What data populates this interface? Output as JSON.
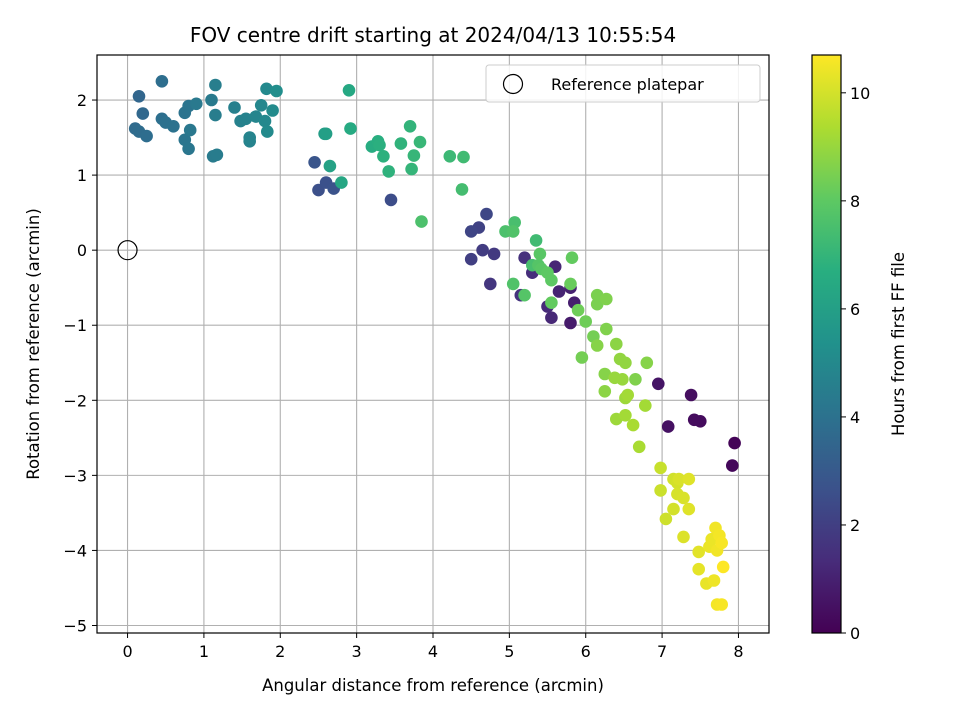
{
  "chart_data": {
    "type": "scatter",
    "title": "FOV centre drift starting at 2024/04/13 10:55:54",
    "xlabel": "Angular distance from reference (arcmin)",
    "ylabel": "Rotation from reference (arcmin)",
    "xlim": [
      -0.4,
      8.4
    ],
    "ylim": [
      -5.1,
      2.6
    ],
    "xticks": [
      0,
      1,
      2,
      3,
      4,
      5,
      6,
      7,
      8
    ],
    "yticks": [
      2,
      1,
      0,
      -1,
      -2,
      -3,
      -4,
      -5
    ],
    "ytick_labels": [
      "2",
      "1",
      "0",
      "−1",
      "−2",
      "−3",
      "−4",
      "−5"
    ],
    "grid": true,
    "legend": {
      "position": "top-right",
      "entries": [
        {
          "label": "Reference platepar",
          "marker": "open-circle",
          "x": 0,
          "y": 0
        }
      ]
    },
    "colorbar": {
      "label": "Hours from first FF file",
      "colormap": "viridis",
      "range": [
        0,
        10.7
      ],
      "ticks": [
        0,
        2,
        4,
        6,
        8,
        10
      ]
    },
    "colormap_stops": [
      "#440154",
      "#472c7a",
      "#3b528b",
      "#2c728e",
      "#21918c",
      "#28ae80",
      "#5ec962",
      "#addc30",
      "#fde725"
    ],
    "points": [
      [
        7.95,
        -2.57,
        0.1
      ],
      [
        7.92,
        -2.87,
        0.2
      ],
      [
        7.5,
        -2.28,
        0.3
      ],
      [
        7.42,
        -2.26,
        0.35
      ],
      [
        7.38,
        -1.93,
        0.4
      ],
      [
        7.08,
        -2.35,
        0.5
      ],
      [
        6.95,
        -1.78,
        0.6
      ],
      [
        5.8,
        -0.97,
        0.8
      ],
      [
        5.85,
        -0.7,
        0.9
      ],
      [
        5.8,
        -0.5,
        1.0
      ],
      [
        5.65,
        -0.55,
        1.1
      ],
      [
        5.6,
        -0.22,
        1.15
      ],
      [
        5.55,
        -0.9,
        1.2
      ],
      [
        5.5,
        -0.75,
        1.3
      ],
      [
        5.3,
        -0.3,
        1.4
      ],
      [
        5.2,
        -0.1,
        1.5
      ],
      [
        5.15,
        -0.6,
        1.6
      ],
      [
        4.75,
        -0.45,
        1.7
      ],
      [
        4.8,
        -0.05,
        1.8
      ],
      [
        4.65,
        0.0,
        1.9
      ],
      [
        4.5,
        -0.12,
        2.0
      ],
      [
        4.6,
        0.3,
        2.1
      ],
      [
        4.5,
        0.25,
        2.2
      ],
      [
        4.7,
        0.48,
        2.3
      ],
      [
        3.45,
        0.67,
        2.5
      ],
      [
        2.5,
        0.8,
        2.6
      ],
      [
        2.6,
        0.9,
        2.65
      ],
      [
        2.7,
        0.82,
        2.7
      ],
      [
        2.45,
        1.17,
        2.8
      ],
      [
        0.15,
        2.05,
        3.5
      ],
      [
        0.2,
        1.82,
        3.6
      ],
      [
        0.1,
        1.62,
        3.7
      ],
      [
        0.15,
        1.58,
        3.75
      ],
      [
        0.25,
        1.52,
        3.8
      ],
      [
        0.45,
        2.25,
        3.85
      ],
      [
        0.45,
        1.75,
        3.9
      ],
      [
        0.5,
        1.7,
        3.95
      ],
      [
        0.6,
        1.65,
        4.0
      ],
      [
        0.75,
        1.83,
        4.05
      ],
      [
        0.8,
        1.92,
        4.1
      ],
      [
        0.75,
        1.47,
        4.15
      ],
      [
        0.8,
        1.35,
        4.2
      ],
      [
        0.82,
        1.6,
        4.25
      ],
      [
        0.9,
        1.95,
        4.3
      ],
      [
        1.1,
        2.0,
        4.35
      ],
      [
        1.12,
        1.25,
        4.4
      ],
      [
        1.17,
        1.27,
        4.45
      ],
      [
        1.15,
        1.8,
        4.5
      ],
      [
        1.15,
        2.2,
        4.55
      ],
      [
        1.4,
        1.9,
        4.6
      ],
      [
        1.48,
        1.72,
        4.65
      ],
      [
        1.55,
        1.75,
        4.7
      ],
      [
        1.6,
        1.45,
        4.75
      ],
      [
        1.6,
        1.5,
        4.8
      ],
      [
        1.68,
        1.78,
        4.85
      ],
      [
        1.75,
        1.93,
        4.9
      ],
      [
        1.8,
        1.72,
        4.95
      ],
      [
        1.82,
        2.15,
        5.0
      ],
      [
        1.83,
        1.58,
        5.05
      ],
      [
        1.9,
        1.86,
        5.1
      ],
      [
        1.95,
        2.12,
        5.2
      ],
      [
        2.58,
        1.55,
        5.9
      ],
      [
        2.6,
        1.55,
        6.0
      ],
      [
        2.65,
        1.12,
        6.1
      ],
      [
        2.8,
        0.9,
        6.3
      ],
      [
        2.9,
        2.13,
        6.4
      ],
      [
        2.92,
        1.62,
        6.5
      ],
      [
        3.2,
        1.38,
        6.6
      ],
      [
        3.28,
        1.45,
        6.7
      ],
      [
        3.3,
        1.4,
        6.75
      ],
      [
        3.35,
        1.25,
        6.8
      ],
      [
        3.42,
        1.05,
        6.85
      ],
      [
        3.58,
        1.42,
        6.9
      ],
      [
        3.7,
        1.65,
        6.95
      ],
      [
        3.72,
        1.08,
        7.0
      ],
      [
        3.75,
        1.26,
        7.05
      ],
      [
        3.83,
        1.44,
        7.1
      ],
      [
        4.22,
        1.25,
        7.2
      ],
      [
        4.4,
        1.24,
        7.3
      ],
      [
        4.38,
        0.81,
        7.4
      ],
      [
        5.07,
        0.37,
        7.5
      ],
      [
        5.35,
        0.13,
        7.3
      ],
      [
        5.3,
        -0.2,
        7.5
      ],
      [
        3.85,
        0.38,
        7.6
      ],
      [
        4.95,
        0.25,
        7.6
      ],
      [
        5.05,
        0.25,
        7.7
      ],
      [
        5.05,
        -0.45,
        7.7
      ],
      [
        5.2,
        -0.6,
        7.8
      ],
      [
        5.38,
        -0.2,
        7.8
      ],
      [
        5.4,
        -0.05,
        7.9
      ],
      [
        5.42,
        -0.25,
        7.9
      ],
      [
        5.5,
        -0.3,
        8.0
      ],
      [
        5.55,
        -0.4,
        8.0
      ],
      [
        5.55,
        -0.7,
        8.1
      ],
      [
        5.82,
        -0.1,
        8.1
      ],
      [
        5.8,
        -0.45,
        8.2
      ],
      [
        5.9,
        -0.8,
        8.3
      ],
      [
        6.0,
        -0.95,
        8.3
      ],
      [
        6.1,
        -1.15,
        8.4
      ],
      [
        5.95,
        -1.43,
        8.4
      ],
      [
        6.15,
        -0.6,
        8.5
      ],
      [
        6.15,
        -0.72,
        8.5
      ],
      [
        6.27,
        -0.65,
        8.6
      ],
      [
        6.27,
        -1.05,
        8.6
      ],
      [
        6.15,
        -1.27,
        8.7
      ],
      [
        6.25,
        -1.65,
        8.7
      ],
      [
        6.25,
        -1.88,
        8.8
      ],
      [
        6.4,
        -1.25,
        8.8
      ],
      [
        6.45,
        -1.45,
        8.9
      ],
      [
        6.52,
        -1.5,
        8.9
      ],
      [
        6.38,
        -1.7,
        9.0
      ],
      [
        6.48,
        -1.72,
        9.0
      ],
      [
        6.4,
        -2.25,
        9.1
      ],
      [
        6.52,
        -1.97,
        9.1
      ],
      [
        6.55,
        -1.93,
        9.2
      ],
      [
        6.52,
        -2.2,
        9.2
      ],
      [
        6.62,
        -2.33,
        9.3
      ],
      [
        6.65,
        -1.72,
        8.6
      ],
      [
        6.7,
        -2.62,
        9.3
      ],
      [
        6.8,
        -1.5,
        8.7
      ],
      [
        6.78,
        -2.07,
        9.2
      ],
      [
        6.98,
        -2.9,
        9.8
      ],
      [
        6.98,
        -3.2,
        9.85
      ],
      [
        7.05,
        -3.58,
        9.9
      ],
      [
        7.15,
        -3.05,
        9.95
      ],
      [
        7.2,
        -3.1,
        10.0
      ],
      [
        7.15,
        -3.45,
        10.0
      ],
      [
        7.2,
        -3.25,
        10.05
      ],
      [
        7.22,
        -3.05,
        10.1
      ],
      [
        7.28,
        -3.3,
        10.1
      ],
      [
        7.28,
        -3.82,
        10.15
      ],
      [
        7.35,
        -3.05,
        10.2
      ],
      [
        7.35,
        -3.45,
        10.2
      ],
      [
        7.48,
        -4.02,
        10.25
      ],
      [
        7.48,
        -4.25,
        10.3
      ],
      [
        7.58,
        -4.44,
        10.35
      ],
      [
        7.62,
        -3.95,
        10.4
      ],
      [
        7.65,
        -3.85,
        10.4
      ],
      [
        7.68,
        -4.4,
        10.45
      ],
      [
        7.7,
        -3.7,
        10.5
      ],
      [
        7.72,
        -4.0,
        10.5
      ],
      [
        7.72,
        -4.72,
        10.55
      ],
      [
        7.75,
        -3.8,
        10.55
      ],
      [
        7.78,
        -3.9,
        10.6
      ],
      [
        7.78,
        -4.72,
        10.6
      ],
      [
        7.8,
        -4.22,
        10.7
      ]
    ]
  }
}
